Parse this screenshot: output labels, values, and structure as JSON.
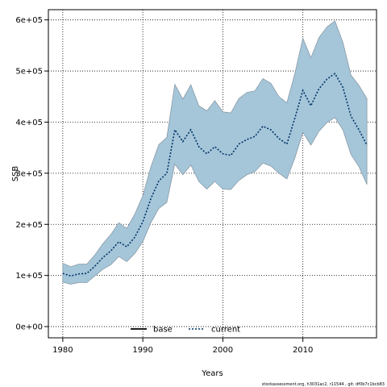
{
  "chart_data": {
    "type": "area",
    "xlabel": "Years",
    "ylabel": "SSB",
    "xlim": [
      1978.2,
      2019.2
    ],
    "ylim": [
      -22000,
      620000
    ],
    "x_ticks": [
      1980,
      1990,
      2000,
      2010
    ],
    "y_ticks": [
      {
        "value": 0,
        "label": "0e+00"
      },
      {
        "value": 100000,
        "label": "1e+05"
      },
      {
        "value": 200000,
        "label": "2e+05"
      },
      {
        "value": 300000,
        "label": "3e+05"
      },
      {
        "value": 400000,
        "label": "4e+05"
      },
      {
        "value": 500000,
        "label": "5e+05"
      },
      {
        "value": 600000,
        "label": "6e+05"
      }
    ],
    "grid": true,
    "legend_position": "bottom-center",
    "legend": [
      {
        "label": "base",
        "style": "solid",
        "color": "#000000"
      },
      {
        "label": "current",
        "style": "dotted",
        "color": "#003366"
      }
    ],
    "band_color": "#a5c6d9",
    "band_edge_color": "#8899a6",
    "x": [
      1980,
      1981,
      1982,
      1983,
      1984,
      1985,
      1986,
      1987,
      1988,
      1989,
      1990,
      1991,
      1992,
      1993,
      1994,
      1995,
      1996,
      1997,
      1998,
      1999,
      2000,
      2001,
      2002,
      2003,
      2004,
      2005,
      2006,
      2007,
      2008,
      2009,
      2010,
      2011,
      2012,
      2013,
      2014,
      2015,
      2016,
      2017,
      2018
    ],
    "series": [
      {
        "name": "current",
        "values": [
          104000,
          99000,
          103000,
          104000,
          118000,
          135000,
          148000,
          166000,
          156000,
          175000,
          205000,
          250000,
          285000,
          300000,
          385000,
          362000,
          385000,
          352000,
          338000,
          352000,
          338000,
          335000,
          357000,
          366000,
          372000,
          392000,
          385000,
          368000,
          357000,
          408000,
          462000,
          432000,
          465000,
          484000,
          495000,
          468000,
          412000,
          385000,
          355000
        ]
      }
    ],
    "band": {
      "upper": [
        124000,
        117000,
        122000,
        122000,
        140000,
        162000,
        180000,
        203000,
        192000,
        220000,
        256000,
        312000,
        356000,
        370000,
        474000,
        445000,
        473000,
        432000,
        422000,
        442000,
        420000,
        418000,
        446000,
        458000,
        461000,
        485000,
        476000,
        450000,
        438000,
        495000,
        564000,
        526000,
        565000,
        586000,
        598000,
        556000,
        492000,
        472000,
        446000
      ],
      "lower": [
        87000,
        83000,
        86000,
        86000,
        99000,
        112000,
        121000,
        137000,
        127000,
        143000,
        166000,
        203000,
        231000,
        243000,
        318000,
        297000,
        316000,
        284000,
        269000,
        284000,
        269000,
        268000,
        286000,
        297000,
        303000,
        320000,
        314000,
        300000,
        289000,
        330000,
        380000,
        355000,
        382000,
        399000,
        409000,
        385000,
        337000,
        313000,
        278000
      ]
    }
  },
  "footer": {
    "text": "stockassessment.org, h3031ac2, r11544 , git: df0b7c1bcb83"
  }
}
